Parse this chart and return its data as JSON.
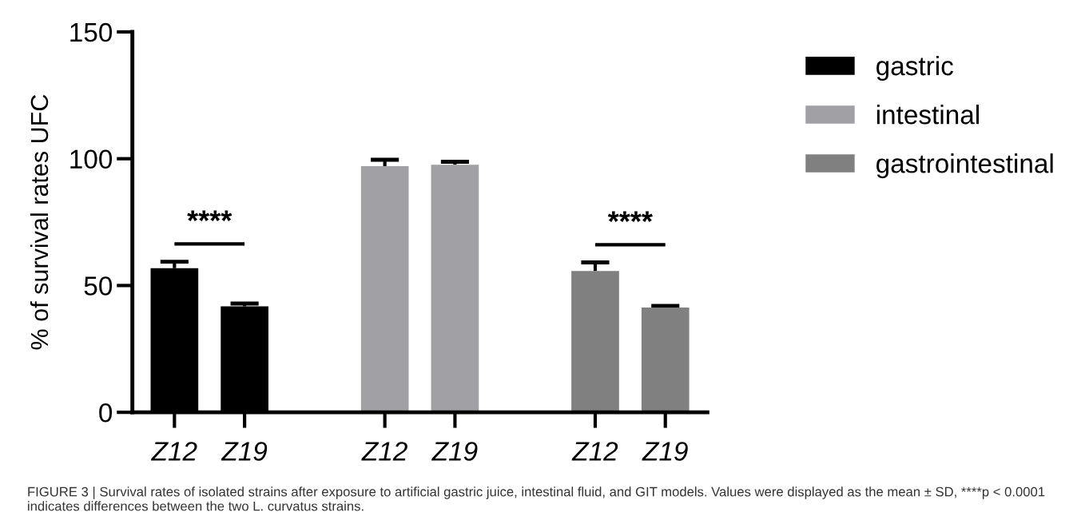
{
  "chart_data": {
    "type": "bar",
    "ylabel": "% of survival rates UFC",
    "categories": [
      "Z12",
      "Z19",
      null,
      "Z12",
      "Z19",
      null,
      "Z12",
      "Z19"
    ],
    "series": [
      {
        "name": "gastric",
        "color": "#000000",
        "values": [
          56.8,
          41.8,
          null,
          null,
          null,
          null,
          null,
          null
        ],
        "errors": [
          2.6,
          1.1,
          null,
          null,
          null,
          null,
          null,
          null
        ]
      },
      {
        "name": "intestinal",
        "color": "#a0a0a5",
        "values": [
          null,
          null,
          null,
          97.1,
          97.6,
          null,
          null,
          null
        ],
        "errors": [
          null,
          null,
          null,
          2.5,
          1.2,
          null,
          null,
          null
        ]
      },
      {
        "name": "gastrointestinal",
        "color": "#808080",
        "values": [
          null,
          null,
          null,
          null,
          null,
          null,
          55.7,
          41.3
        ],
        "errors": [
          null,
          null,
          null,
          null,
          null,
          null,
          3.4,
          0.7
        ]
      }
    ],
    "ylim": [
      0,
      150
    ],
    "yticks": [
      0,
      50,
      100,
      150
    ],
    "grid": false,
    "legend": "top right",
    "annotations": [
      "****",
      "****",
      "FIGURE 3 | Survival rates of isolated strains after exposure to artificial gastric juice, intestinal fluid, and GIT models. Values were displayed as the mean ± SD, ****p < 0.0001 indicates differences between the two L. curvatus strains."
    ]
  }
}
